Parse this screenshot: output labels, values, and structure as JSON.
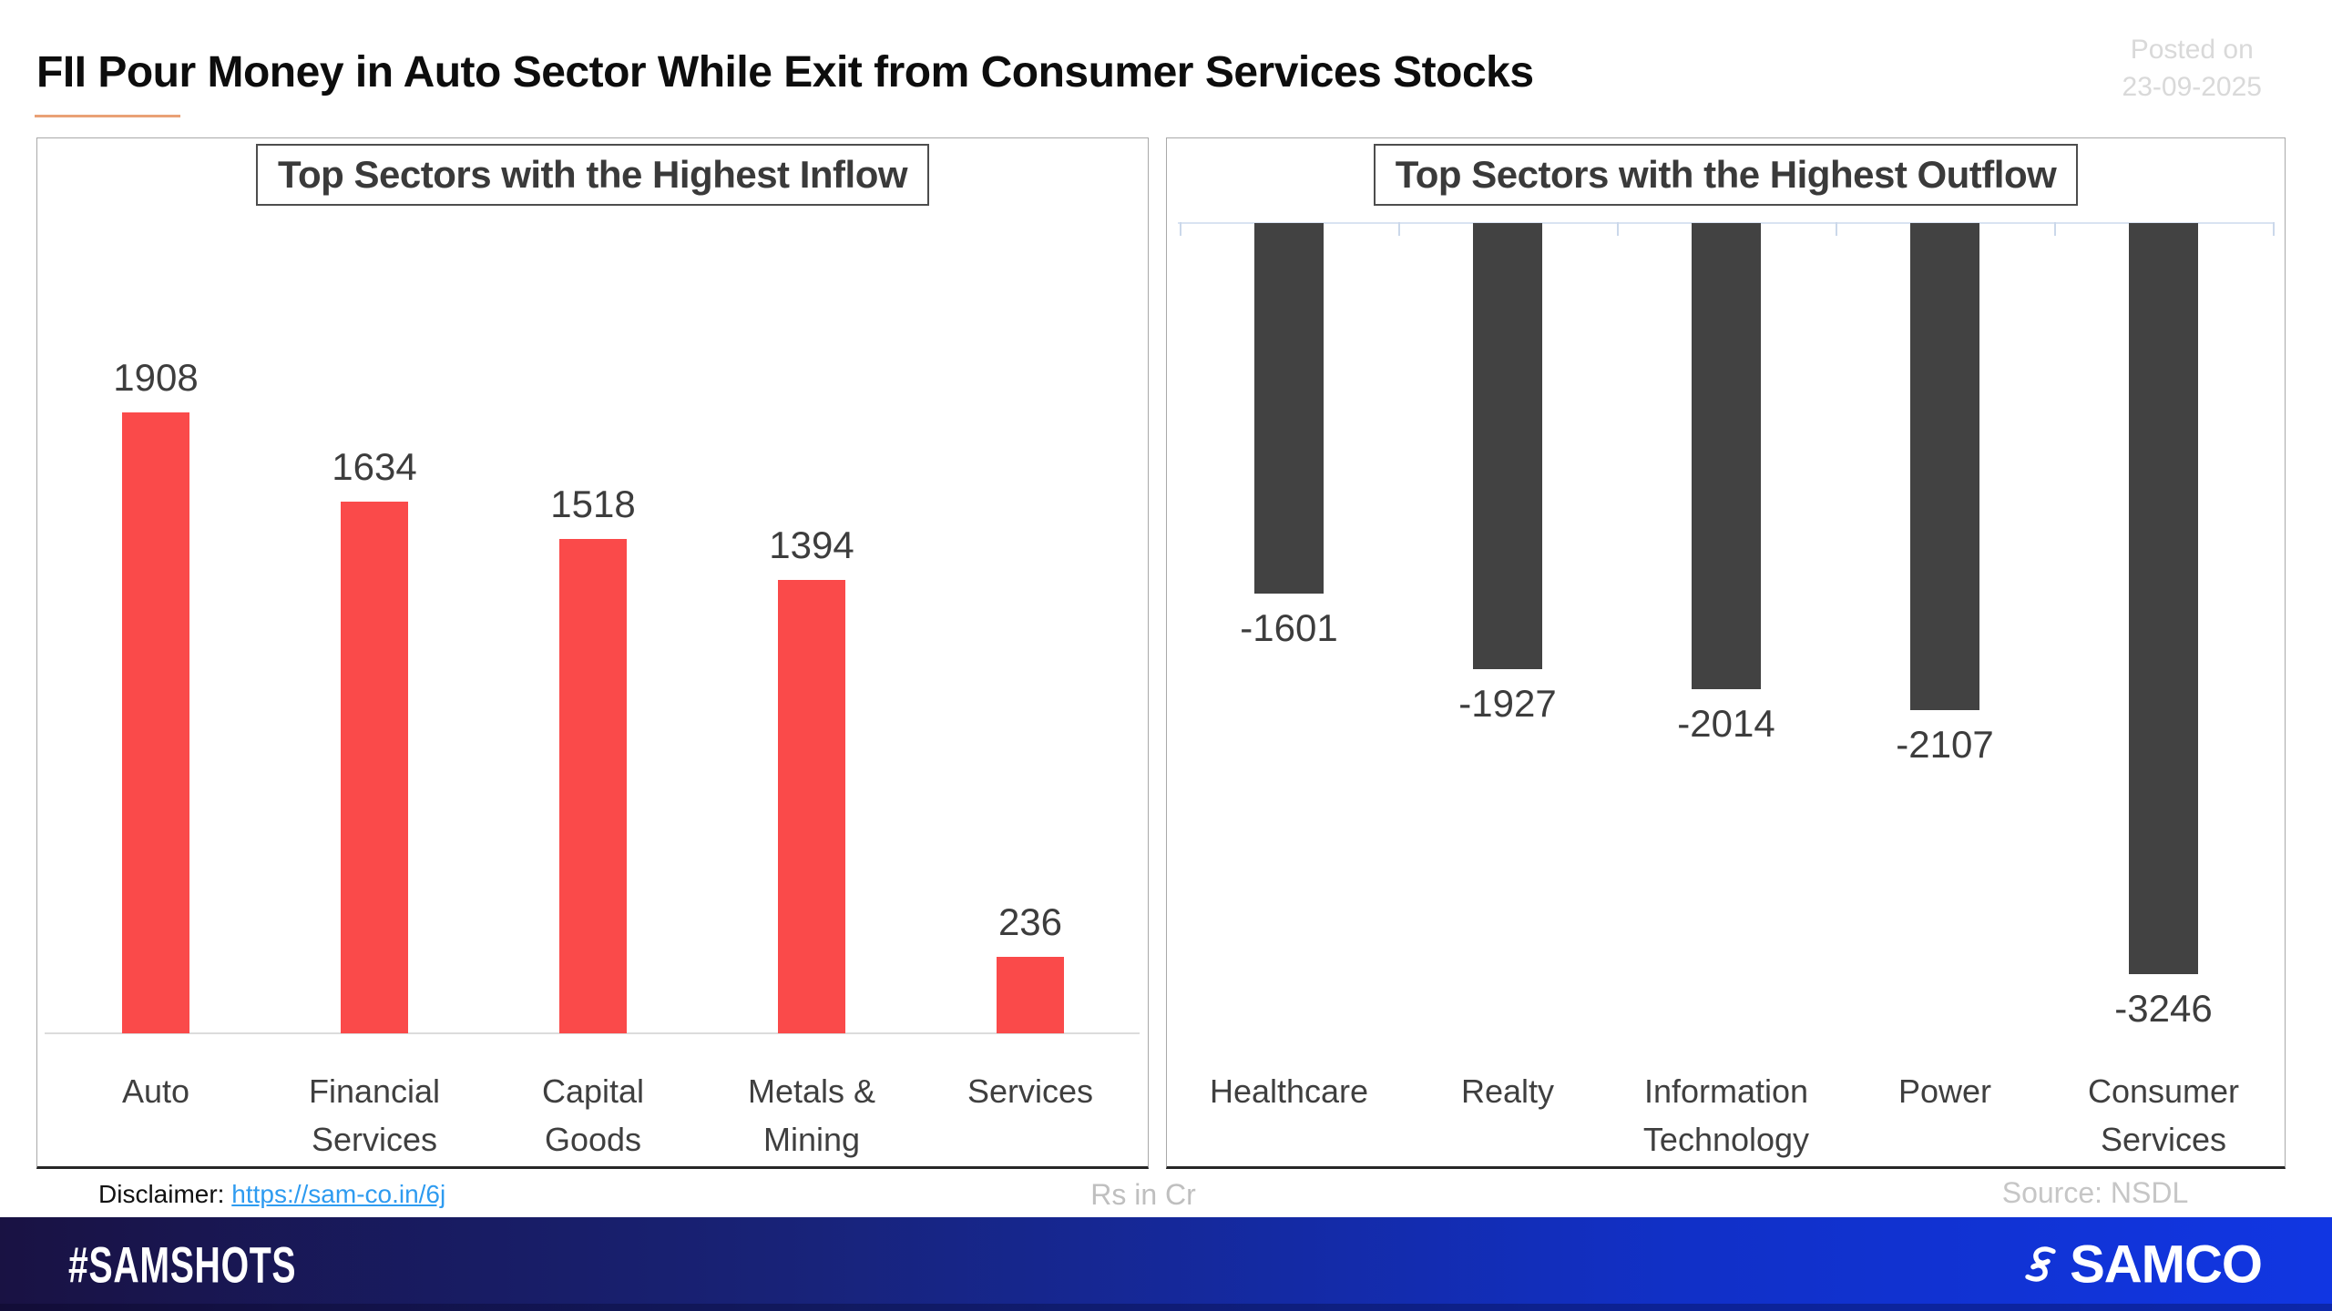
{
  "header": {
    "title": "FII Pour Money in Auto Sector While Exit from Consumer Services Stocks",
    "posted_on_label": "Posted on",
    "posted_on_date": "23-09-2025"
  },
  "chart_data": [
    {
      "type": "bar",
      "title": "Top Sectors with the Highest Inflow",
      "categories": [
        "Auto",
        "Financial Services",
        "Capital Goods",
        "Metals & Mining",
        "Services"
      ],
      "values": [
        1908,
        1634,
        1518,
        1394,
        236
      ],
      "bar_color": "#fa4a4a",
      "value_labels": "above bars",
      "unit": "Rs in Cr",
      "orientation": "vertical",
      "grid": false,
      "legend": false,
      "ylim": [
        0,
        2100
      ]
    },
    {
      "type": "bar",
      "title": "Top Sectors with the Highest Outflow",
      "categories": [
        "Healthcare",
        "Realty",
        "Information Technology",
        "Power",
        "Consumer Services"
      ],
      "values": [
        -1601,
        -1927,
        -2014,
        -2107,
        -3246
      ],
      "bar_color": "#424242",
      "value_labels": "below bars",
      "unit": "Rs in Cr",
      "orientation": "vertical",
      "grid": false,
      "legend": false,
      "ylim": [
        -3400,
        0
      ]
    }
  ],
  "footer_notes": {
    "disclaimer_label": "Disclaimer:",
    "disclaimer_link": "https://sam-co.in/6j",
    "unit_note": "Rs in Cr",
    "source_note": "Source: NSDL"
  },
  "footer_bar": {
    "hashtag": "#SAMSHOTS",
    "brand": "SAMCO"
  },
  "colors": {
    "inflow_bar": "#fa4a4a",
    "outflow_bar": "#424242",
    "title_underline": "#e9a176",
    "link_blue": "#2e9bf0",
    "muted_gray": "#bfbfbf",
    "footer_gradient_left": "#191243",
    "footer_gradient_right": "#1136e2"
  }
}
